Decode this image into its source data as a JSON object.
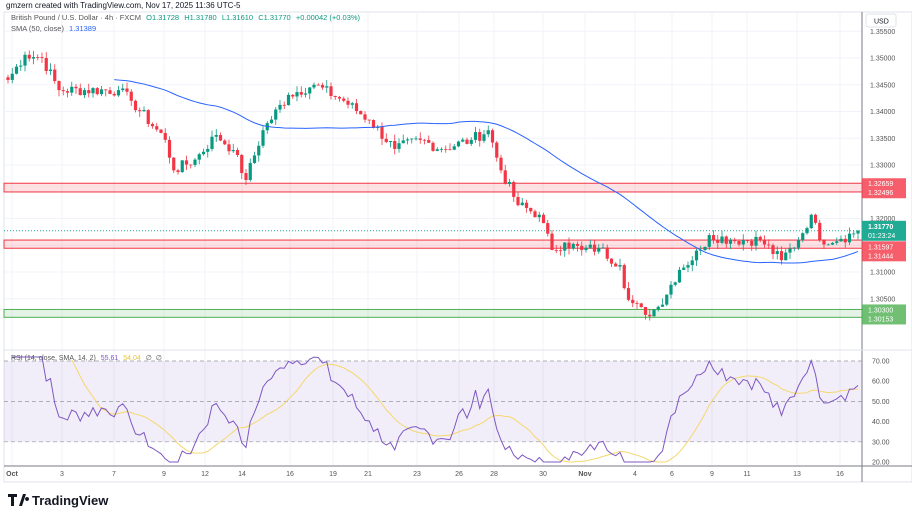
{
  "credit": "gmzern created with TradingView.com, Nov 17, 2025 11:36 UTC-5",
  "legend": {
    "symbol": "British Pound / U.S. Dollar · 4h · FXCM",
    "open": "O1.31728",
    "high": "H1.31780",
    "low": "L1.31610",
    "close": "C1.31770",
    "change": "+0.00042 (+0.03%)",
    "sma_label": "SMA (50, close)",
    "sma_value": "1.31389"
  },
  "currency": "USD",
  "price_axis": [
    "1.35500",
    "1.35000",
    "1.34500",
    "1.34000",
    "1.33500",
    "1.33000",
    "1.32000",
    "1.31000",
    "1.30500"
  ],
  "zones": [
    {
      "top_label": "1.32659",
      "bottom_label": "1.32496",
      "top": 1.32659,
      "bottom": 1.32496,
      "color": "#f23645"
    },
    {
      "top_label": "1.31597",
      "bottom_label": "1.31444",
      "top": 1.31597,
      "bottom": 1.31444,
      "color": "#f23645"
    },
    {
      "top_label": "1.30300",
      "bottom_label": "1.30153",
      "top": 1.303,
      "bottom": 1.30153,
      "color": "#4caf50"
    }
  ],
  "last_price": {
    "value": "1.31770",
    "countdown": "01:23:24",
    "price": 1.3177,
    "color": "#22ab94"
  },
  "rsi": {
    "label": "RSI (14, close, SMA, 14, 2)",
    "value": "55.61",
    "sma_value": "54.04",
    "extra1": "∅",
    "extra2": "∅",
    "axis": [
      "70.00",
      "60.00",
      "50.00",
      "40.00",
      "30.00",
      "20.00"
    ],
    "line_color": "#7e57c2",
    "sma_color": "#f5d76e"
  },
  "date_axis": [
    "Oct",
    "3",
    "7",
    "9",
    "12",
    "14",
    "16",
    "19",
    "21",
    "23",
    "26",
    "28",
    "30",
    "Nov",
    "4",
    "6",
    "9",
    "11",
    "13",
    "16"
  ],
  "brand": "TradingView",
  "colors": {
    "up": "#089981",
    "down": "#f23645",
    "sma": "#2962ff"
  },
  "chart_data": {
    "type": "candlestick",
    "symbol": "GBPUSD",
    "interval": "4h",
    "ylim": [
      1.2995,
      1.3565
    ],
    "close_path": [
      [
        0,
        1.3459
      ],
      [
        4,
        1.3506
      ],
      [
        8,
        1.35
      ],
      [
        12,
        1.344
      ],
      [
        26,
        1.344
      ],
      [
        29,
        1.342
      ],
      [
        37,
        1.3347
      ],
      [
        39,
        1.329
      ],
      [
        44,
        1.331
      ],
      [
        49,
        1.3356
      ],
      [
        53,
        1.3328
      ],
      [
        56,
        1.3272
      ],
      [
        60,
        1.3365
      ],
      [
        66,
        1.3431
      ],
      [
        72,
        1.345
      ],
      [
        79,
        1.342
      ],
      [
        85,
        1.3384
      ],
      [
        91,
        1.333
      ],
      [
        97,
        1.3347
      ],
      [
        102,
        1.333
      ],
      [
        109,
        1.3347
      ],
      [
        113,
        1.3365
      ],
      [
        116,
        1.329
      ],
      [
        120,
        1.3225
      ],
      [
        125,
        1.3207
      ],
      [
        128,
        1.3141
      ],
      [
        131,
        1.3155
      ],
      [
        135,
        1.3141
      ],
      [
        139,
        1.3145
      ],
      [
        144,
        1.3113
      ],
      [
        146,
        1.3048
      ],
      [
        150,
        1.302
      ],
      [
        153,
        1.3035
      ],
      [
        158,
        1.3104
      ],
      [
        163,
        1.3141
      ],
      [
        165,
        1.3169
      ],
      [
        170,
        1.316
      ],
      [
        177,
        1.316
      ],
      [
        182,
        1.3122
      ],
      [
        186,
        1.316
      ],
      [
        189,
        1.3207
      ],
      [
        191,
        1.316
      ],
      [
        196,
        1.3162
      ],
      [
        200,
        1.3177
      ]
    ],
    "sma_period": 50,
    "rsi_period": 14,
    "rsi_levels": [
      70,
      50,
      30
    ],
    "rsi_ylim": [
      17,
      75
    ]
  }
}
